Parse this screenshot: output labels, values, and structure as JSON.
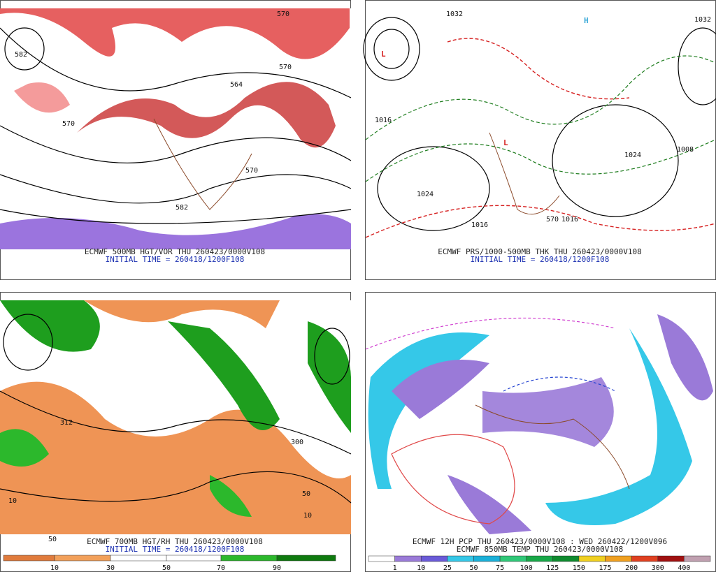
{
  "panels": [
    {
      "caption": "ECMWF 500MB HGT/VOR THU 260423/0000V108",
      "initial_time": "INITIAL TIME = 260418/1200F108",
      "contour_labels": [
        "570",
        "570",
        "570",
        "564",
        "582",
        "570",
        "582"
      ]
    },
    {
      "caption": "ECMWF PRS/1000-500MB THK THU 260423/0000V108",
      "initial_time": "INITIAL TIME = 260418/1200F108",
      "contour_labels": [
        "1032",
        "1032",
        "1016",
        "1024",
        "1016",
        "1024",
        "1008",
        "1016",
        "570"
      ]
    },
    {
      "caption": "ECMWF 700MB HGT/RH THU 260423/0000V108",
      "initial_time": "INITIAL TIME = 260418/1200F108",
      "contour_labels": [
        "312",
        "300",
        "10",
        "50",
        "10",
        "50"
      ]
    },
    {
      "caption": "ECMWF 12H PCP THU 260423/0000V108 : WED 260422/1200V096",
      "initial_time": "ECMWF 850MB TEMP THU 260423/0000V108",
      "contour_labels": []
    }
  ],
  "colorbars": [
    {
      "labels": [
        "10",
        "30",
        "50",
        "70",
        "90"
      ]
    },
    {
      "labels": [
        "1",
        "10",
        "25",
        "50",
        "75",
        "100",
        "125",
        "150",
        "175",
        "200",
        "300",
        "400"
      ]
    }
  ]
}
